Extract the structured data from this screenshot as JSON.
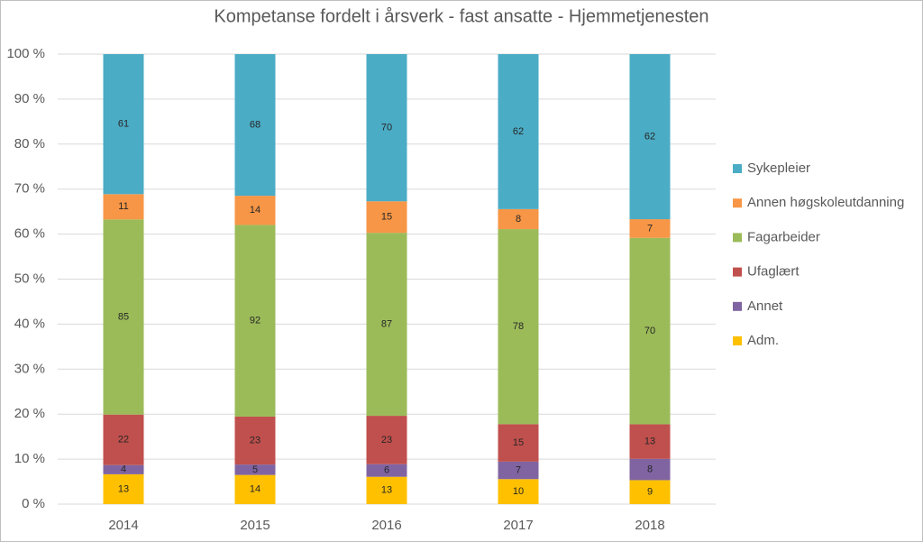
{
  "chart_data": {
    "type": "bar",
    "stacked": "percent",
    "title": "Kompetanse fordelt i årsverk - fast ansatte - Hjemmetjenesten",
    "categories": [
      "2014",
      "2015",
      "2016",
      "2017",
      "2018"
    ],
    "series": [
      {
        "name": "Adm.",
        "color": "#ffc000",
        "values": [
          13,
          14,
          13,
          10,
          9
        ]
      },
      {
        "name": "Annet",
        "color": "#8064a2",
        "values": [
          4,
          5,
          6,
          7,
          8
        ]
      },
      {
        "name": "Ufaglært",
        "color": "#c0504d",
        "values": [
          22,
          23,
          23,
          15,
          13
        ]
      },
      {
        "name": "Fagarbeider",
        "color": "#9bbb59",
        "values": [
          85,
          92,
          87,
          78,
          70
        ]
      },
      {
        "name": "Annen høgskoleutdanning",
        "color": "#f79646",
        "values": [
          11,
          14,
          15,
          8,
          7
        ]
      },
      {
        "name": "Sykepleier",
        "color": "#4bacc6",
        "values": [
          61,
          68,
          70,
          62,
          62
        ]
      }
    ],
    "ylim": [
      0,
      100
    ],
    "yticks": [
      {
        "value": 0,
        "label": "0 %"
      },
      {
        "value": 10,
        "label": "10 %"
      },
      {
        "value": 20,
        "label": "20 %"
      },
      {
        "value": 30,
        "label": "30 %"
      },
      {
        "value": 40,
        "label": "40 %"
      },
      {
        "value": 50,
        "label": "50 %"
      },
      {
        "value": 60,
        "label": "60 %"
      },
      {
        "value": 70,
        "label": "70 %"
      },
      {
        "value": 80,
        "label": "80 %"
      },
      {
        "value": 90,
        "label": "90 %"
      },
      {
        "value": 100,
        "label": "100 %"
      }
    ],
    "grid": true,
    "legend": "right"
  }
}
